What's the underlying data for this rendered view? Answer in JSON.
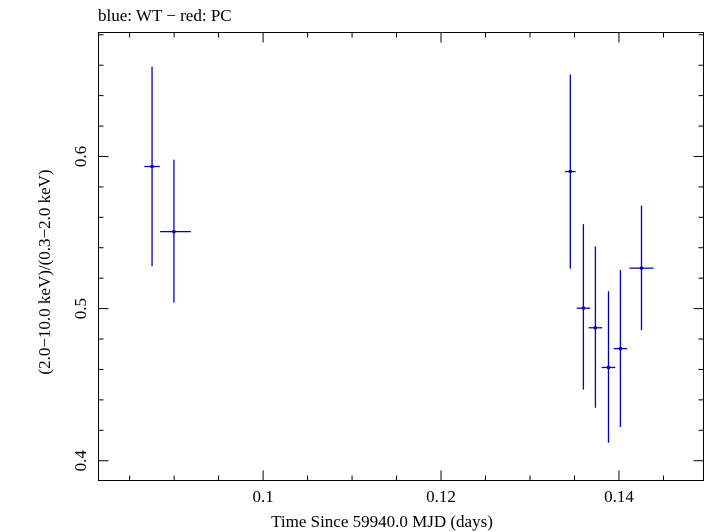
{
  "chart_data": {
    "type": "scatter",
    "title": "blue: WT − red: PC",
    "xlabel": "Time Since 59940.0 MJD (days)",
    "ylabel": "(2.0−10.0 keV)/(0.3−2.0 keV)",
    "xlim": [
      0.0815,
      0.1495
    ],
    "ylim": [
      0.387,
      0.6815
    ],
    "x_ticks": [
      {
        "value": 0.1,
        "label": "0.1"
      },
      {
        "value": 0.12,
        "label": "0.12"
      },
      {
        "value": 0.14,
        "label": "0.14"
      }
    ],
    "y_ticks": [
      {
        "value": 0.4,
        "label": "0.4"
      },
      {
        "value": 0.5,
        "label": "0.5"
      },
      {
        "value": 0.6,
        "label": "0.6"
      }
    ],
    "x_minor_step": 0.005,
    "y_minor_step": 0.02,
    "grid": false,
    "series": [
      {
        "name": "WT",
        "color": "#0000cc",
        "points": [
          {
            "x": 0.08752,
            "xerr_lo": 0.00087,
            "xerr_hi": 0.00087,
            "y": 0.5934,
            "yerr_lo": 0.0655,
            "yerr_hi": 0.0656
          },
          {
            "x": 0.08998,
            "xerr_lo": 0.00155,
            "xerr_hi": 0.0019,
            "y": 0.5506,
            "yerr_lo": 0.0467,
            "yerr_hi": 0.0473
          },
          {
            "x": 0.13453,
            "xerr_lo": 0.00059,
            "xerr_hi": 0.00059,
            "y": 0.5901,
            "yerr_lo": 0.0638,
            "yerr_hi": 0.0639
          },
          {
            "x": 0.136,
            "xerr_lo": 0.00076,
            "xerr_hi": 0.00076,
            "y": 0.5003,
            "yerr_lo": 0.0536,
            "yerr_hi": 0.0552
          },
          {
            "x": 0.13735,
            "xerr_lo": 0.00076,
            "xerr_hi": 0.00076,
            "y": 0.4874,
            "yerr_lo": 0.0526,
            "yerr_hi": 0.0534
          },
          {
            "x": 0.13882,
            "xerr_lo": 0.00076,
            "xerr_hi": 0.00076,
            "y": 0.4613,
            "yerr_lo": 0.0495,
            "yerr_hi": 0.0501
          },
          {
            "x": 0.14016,
            "xerr_lo": 0.00076,
            "xerr_hi": 0.00076,
            "y": 0.4737,
            "yerr_lo": 0.0515,
            "yerr_hi": 0.0517
          },
          {
            "x": 0.14253,
            "xerr_lo": 0.00135,
            "xerr_hi": 0.00135,
            "y": 0.5266,
            "yerr_lo": 0.0408,
            "yerr_hi": 0.0411
          }
        ]
      }
    ]
  }
}
